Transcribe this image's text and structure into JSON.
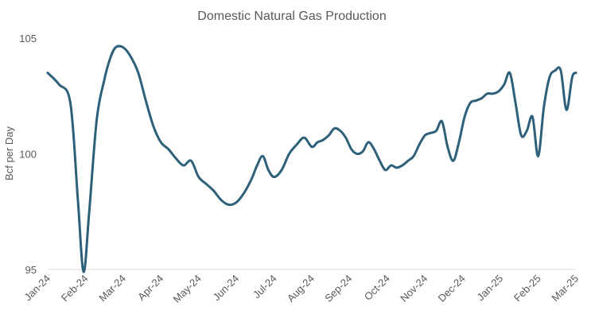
{
  "chart_data": {
    "type": "line",
    "title": "Domestic Natural Gas Production",
    "xlabel": "",
    "ylabel": "Bcf per Day",
    "ylim": [
      95,
      105
    ],
    "yticks": [
      95,
      100,
      105
    ],
    "xticks": [
      "Jan-24",
      "Feb-24",
      "Mar-24",
      "Apr-24",
      "May-24",
      "Jun-24",
      "Jul-24",
      "Aug-24",
      "Sep-24",
      "Oct-24",
      "Nov-24",
      "Dec-24",
      "Jan-25",
      "Feb-25",
      "Mar-25"
    ],
    "grid": false,
    "legend": "none",
    "line_color": "#2E6079",
    "series": [
      {
        "name": "",
        "x": [
          0,
          0.3,
          0.6,
          0.8,
          0.95,
          1.1,
          1.3,
          1.5,
          1.65,
          1.8,
          2.0,
          2.2,
          2.4,
          2.6,
          2.8,
          3.0,
          3.2,
          3.4,
          3.6,
          3.8,
          4.0,
          4.2,
          4.4,
          4.6,
          4.8,
          5.0,
          5.2,
          5.4,
          5.55,
          5.7,
          5.85,
          6.0,
          6.2,
          6.4,
          6.6,
          6.8,
          7.0,
          7.15,
          7.3,
          7.45,
          7.6,
          7.75,
          7.9,
          8.05,
          8.2,
          8.35,
          8.5,
          8.65,
          8.8,
          8.95,
          9.1,
          9.25,
          9.4,
          9.55,
          9.7,
          9.85,
          10.0,
          10.15,
          10.3,
          10.45,
          10.6,
          10.75,
          10.9,
          11.05,
          11.2,
          11.35,
          11.5,
          11.65,
          11.8,
          11.95,
          12.1,
          12.25,
          12.4,
          12.55,
          12.7,
          12.85,
          13.0,
          13.15,
          13.3,
          13.45,
          13.6,
          13.75,
          13.9,
          14.0
        ],
        "values": [
          103.5,
          103.0,
          102.2,
          98.0,
          94.9,
          97.5,
          101.5,
          103.2,
          104.1,
          104.6,
          104.6,
          104.2,
          103.5,
          102.3,
          101.2,
          100.5,
          100.2,
          99.8,
          99.5,
          99.7,
          99.0,
          98.7,
          98.4,
          98.0,
          97.8,
          97.9,
          98.3,
          98.9,
          99.5,
          99.9,
          99.3,
          99.0,
          99.3,
          100.0,
          100.4,
          100.7,
          100.3,
          100.5,
          100.6,
          100.8,
          101.1,
          101.0,
          100.7,
          100.2,
          100.0,
          100.1,
          100.5,
          100.2,
          99.7,
          99.3,
          99.5,
          99.4,
          99.5,
          99.7,
          99.9,
          100.4,
          100.8,
          100.9,
          101.0,
          101.4,
          100.3,
          99.7,
          100.5,
          101.6,
          102.2,
          102.3,
          102.4,
          102.6,
          102.6,
          102.7,
          103.0,
          103.5,
          102.2,
          100.8,
          101.0,
          101.6,
          99.9,
          102.0,
          103.3,
          103.6,
          103.6,
          101.9,
          103.3,
          103.5
        ]
      }
    ]
  }
}
